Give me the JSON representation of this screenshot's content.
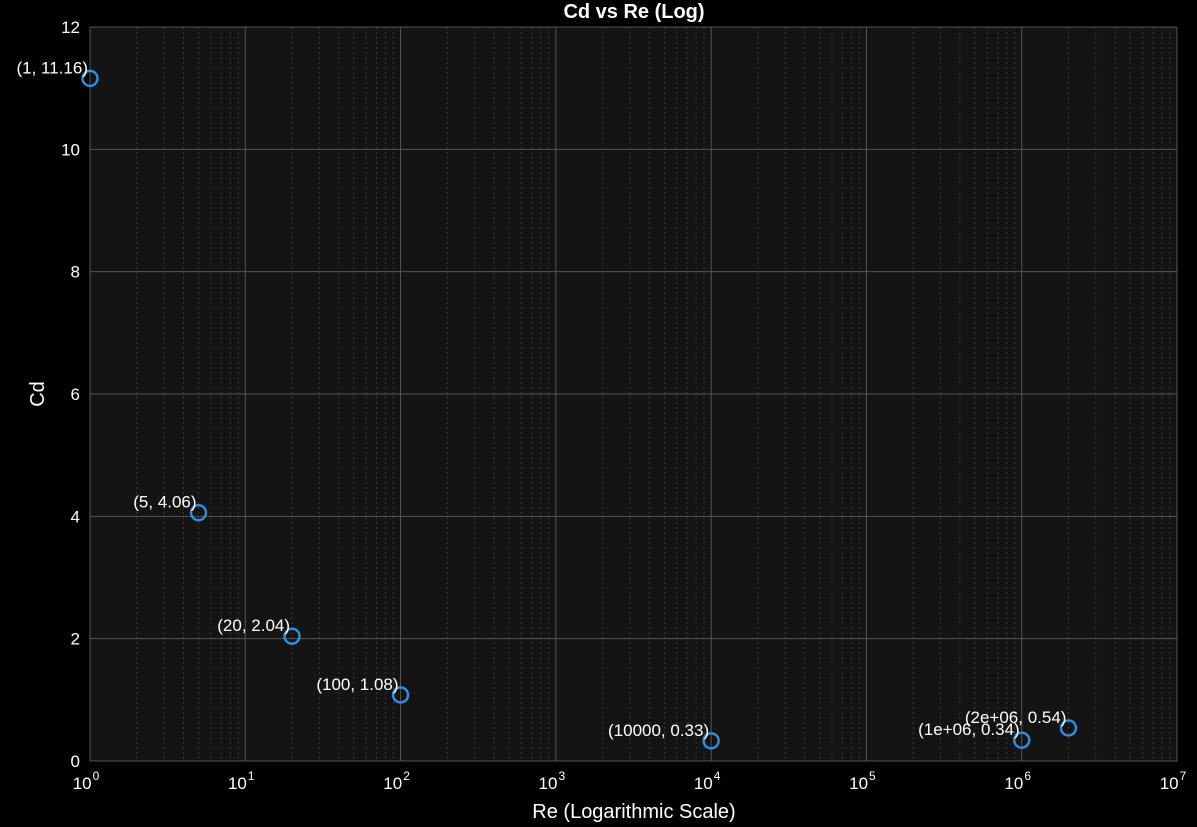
{
  "chart_data": {
    "type": "scatter",
    "title": "Cd vs Re (Log)",
    "xlabel": "Re (Logarithmic Scale)",
    "ylabel": "Cd",
    "xscale": "log",
    "xlim": [
      1,
      10000000
    ],
    "ylim": [
      0,
      12
    ],
    "yticks": [
      0,
      2,
      4,
      6,
      8,
      10,
      12
    ],
    "xtick_exponents": [
      "0",
      "1",
      "2",
      "3",
      "4",
      "5",
      "6",
      "7"
    ],
    "xtick_base": "10",
    "grid": true,
    "minor_grid": true,
    "marker": "circle-open",
    "colors": {
      "background": "#000000",
      "plot_area": "#141414",
      "grid": "#555555",
      "minor_grid": "#3a3a3a",
      "marker": "#2f8fe0",
      "text": "#ffffff"
    },
    "points": [
      {
        "x": 1,
        "y": 11.16,
        "label": "(1, 11.16)"
      },
      {
        "x": 5,
        "y": 4.06,
        "label": "(5, 4.06)"
      },
      {
        "x": 20,
        "y": 2.04,
        "label": "(20, 2.04)"
      },
      {
        "x": 100,
        "y": 1.08,
        "label": "(100, 1.08)"
      },
      {
        "x": 10000,
        "y": 0.33,
        "label": "(10000, 0.33)"
      },
      {
        "x": 1000000,
        "y": 0.34,
        "label": "(1e+06, 0.34)"
      },
      {
        "x": 2000000,
        "y": 0.54,
        "label": "(2e+06, 0.54)"
      }
    ]
  }
}
